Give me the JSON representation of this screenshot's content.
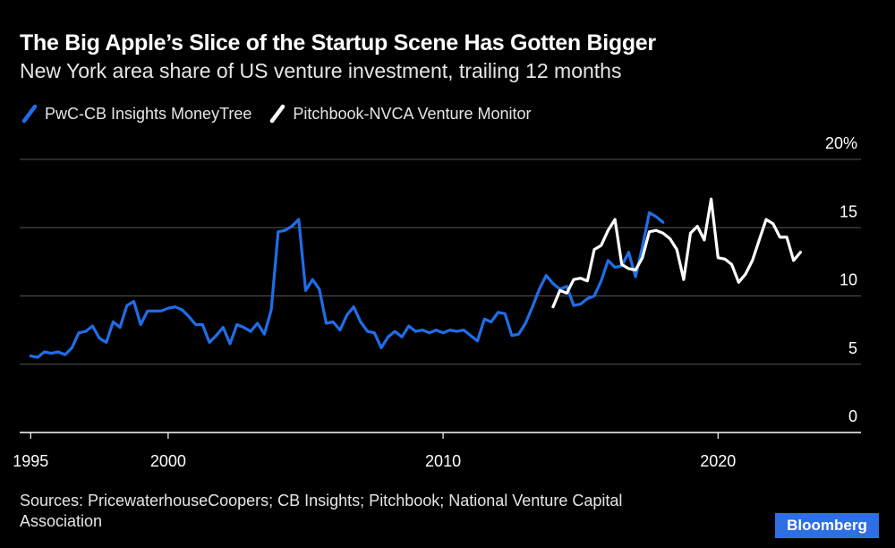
{
  "header": {
    "title": "The Big Apple’s Slice of the Startup Scene Has Gotten Bigger",
    "subtitle": "New York area share of US venture investment, trailing 12 months"
  },
  "legend": {
    "items": [
      {
        "label": "PwC-CB Insights MoneyTree",
        "color": "#1f6ee8"
      },
      {
        "label": "Pitchbook-NVCA Venture Monitor",
        "color": "#ffffff"
      }
    ]
  },
  "footer": {
    "source": "Sources: PricewaterhouseCoopers; CB Insights; Pitchbook; National Venture Capital Association",
    "logo": "Bloomberg"
  },
  "chart_data": {
    "type": "line",
    "title": "The Big Apple’s Slice of the Startup Scene Has Gotten Bigger",
    "subtitle": "New York area share of US venture investment, trailing 12 months",
    "xlabel": "",
    "ylabel": "",
    "xlim": [
      1994.6,
      2025.2
    ],
    "ylim": [
      0,
      20
    ],
    "x_ticks": [
      1995,
      2000,
      2010,
      2020
    ],
    "y_ticks": [
      {
        "value": 0,
        "label": "0"
      },
      {
        "value": 5,
        "label": "5"
      },
      {
        "value": 10,
        "label": "10"
      },
      {
        "value": 15,
        "label": "15"
      },
      {
        "value": 20,
        "label": "20%"
      }
    ],
    "grid": "horizontal",
    "y_axis_position": "right",
    "legend_position": "top-left",
    "series": [
      {
        "name": "PwC-CB Insights MoneyTree",
        "color": "#1f6ee8",
        "x": [
          1995.0,
          1995.25,
          1995.5,
          1995.75,
          1996.0,
          1996.25,
          1996.5,
          1996.75,
          1997.0,
          1997.25,
          1997.5,
          1997.75,
          1998.0,
          1998.25,
          1998.5,
          1998.75,
          1999.0,
          1999.25,
          1999.5,
          1999.75,
          2000.0,
          2000.25,
          2000.5,
          2000.75,
          2001.0,
          2001.25,
          2001.5,
          2001.75,
          2002.0,
          2002.25,
          2002.5,
          2002.75,
          2003.0,
          2003.25,
          2003.5,
          2003.75,
          2004.0,
          2004.25,
          2004.5,
          2004.75,
          2005.0,
          2005.25,
          2005.5,
          2005.75,
          2006.0,
          2006.25,
          2006.5,
          2006.75,
          2007.0,
          2007.25,
          2007.5,
          2007.75,
          2008.0,
          2008.25,
          2008.5,
          2008.75,
          2009.0,
          2009.25,
          2009.5,
          2009.75,
          2010.0,
          2010.25,
          2010.5,
          2010.75,
          2011.0,
          2011.25,
          2011.5,
          2011.75,
          2012.0,
          2012.25,
          2012.5,
          2012.75,
          2013.0,
          2013.25,
          2013.5,
          2013.75,
          2014.0,
          2014.25,
          2014.5,
          2014.75,
          2015.0,
          2015.25,
          2015.5,
          2015.75,
          2016.0,
          2016.25,
          2016.5,
          2016.75,
          2017.0,
          2017.25,
          2017.5,
          2017.75,
          2018.0
        ],
        "values": [
          5.6,
          5.5,
          5.9,
          5.8,
          5.9,
          5.7,
          6.2,
          7.3,
          7.4,
          7.8,
          6.9,
          6.6,
          8.1,
          7.7,
          9.3,
          9.6,
          7.9,
          8.9,
          8.9,
          8.9,
          9.1,
          9.2,
          9.0,
          8.5,
          7.9,
          7.9,
          6.6,
          7.1,
          7.7,
          6.5,
          7.9,
          7.7,
          7.4,
          8.0,
          7.2,
          9.0,
          14.7,
          14.8,
          15.1,
          15.6,
          10.4,
          11.2,
          10.5,
          8.0,
          8.1,
          7.5,
          8.6,
          9.2,
          8.1,
          7.4,
          7.3,
          6.2,
          7.0,
          7.4,
          7.0,
          7.8,
          7.4,
          7.5,
          7.3,
          7.5,
          7.3,
          7.5,
          7.4,
          7.5,
          7.1,
          6.7,
          8.3,
          8.1,
          8.8,
          8.7,
          7.1,
          7.2,
          8.0,
          9.2,
          10.5,
          11.5,
          10.9,
          10.5,
          10.7,
          9.3,
          9.4,
          9.8,
          10.0,
          11.1,
          12.6,
          12.1,
          12.2,
          13.2,
          11.4,
          13.6,
          16.1,
          15.8,
          15.4
        ]
      },
      {
        "name": "Pitchbook-NVCA Venture Monitor",
        "color": "#ffffff",
        "x": [
          2014.0,
          2014.25,
          2014.5,
          2014.75,
          2015.0,
          2015.25,
          2015.5,
          2015.75,
          2016.0,
          2016.25,
          2016.5,
          2016.75,
          2017.0,
          2017.25,
          2017.5,
          2017.75,
          2018.0,
          2018.25,
          2018.5,
          2018.75,
          2019.0,
          2019.25,
          2019.5,
          2019.75,
          2020.0,
          2020.25,
          2020.5,
          2020.75,
          2021.0,
          2021.25,
          2021.5,
          2021.75,
          2022.0,
          2022.25,
          2022.5,
          2022.75,
          2023.0,
          2023.25
        ],
        "values": [
          9.2,
          10.4,
          10.2,
          11.2,
          11.3,
          11.1,
          13.4,
          13.7,
          14.8,
          15.6,
          12.3,
          12.0,
          11.9,
          12.8,
          14.7,
          14.8,
          14.6,
          14.2,
          13.4,
          11.2,
          14.6,
          15.1,
          14.1,
          17.1,
          12.8,
          12.7,
          12.3,
          11.0,
          11.6,
          12.6,
          14.1,
          15.6,
          15.3,
          14.3,
          14.3,
          12.6,
          13.2,
          null
        ]
      }
    ]
  }
}
